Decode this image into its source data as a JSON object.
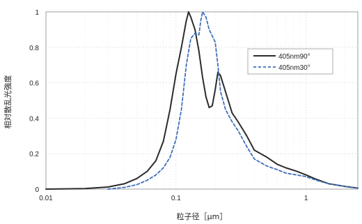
{
  "chart_data": {
    "type": "line",
    "title": "",
    "xlabel": "粒子径［μm］",
    "ylabel": "相対散乱光強度",
    "x_scale": "log",
    "xlim": [
      0.01,
      2.5
    ],
    "ylim": [
      0,
      1
    ],
    "x_ticks": [
      0.01,
      0.1,
      1
    ],
    "x_tick_labels": [
      "0.01",
      "0.1",
      "1"
    ],
    "y_ticks": [
      0,
      0.2,
      0.4,
      0.6,
      0.8,
      1
    ],
    "y_tick_labels": [
      "0",
      "0.2",
      "0.4",
      "0.6",
      "0.8",
      "1"
    ],
    "grid": true,
    "legend_position": "right",
    "series": [
      {
        "name": "405nm90°",
        "color": "#2b2b2b",
        "dash": "solid",
        "points": [
          [
            0.01,
            0
          ],
          [
            0.02,
            0.003
          ],
          [
            0.03,
            0.012
          ],
          [
            0.04,
            0.03
          ],
          [
            0.05,
            0.06
          ],
          [
            0.06,
            0.1
          ],
          [
            0.07,
            0.16
          ],
          [
            0.08,
            0.27
          ],
          [
            0.09,
            0.45
          ],
          [
            0.1,
            0.65
          ],
          [
            0.11,
            0.8
          ],
          [
            0.12,
            0.95
          ],
          [
            0.125,
            1.0
          ],
          [
            0.13,
            0.97
          ],
          [
            0.14,
            0.9
          ],
          [
            0.15,
            0.78
          ],
          [
            0.16,
            0.63
          ],
          [
            0.17,
            0.52
          ],
          [
            0.18,
            0.46
          ],
          [
            0.19,
            0.47
          ],
          [
            0.2,
            0.56
          ],
          [
            0.21,
            0.66
          ],
          [
            0.22,
            0.64
          ],
          [
            0.24,
            0.55
          ],
          [
            0.27,
            0.43
          ],
          [
            0.3,
            0.38
          ],
          [
            0.35,
            0.3
          ],
          [
            0.4,
            0.22
          ],
          [
            0.5,
            0.18
          ],
          [
            0.6,
            0.14
          ],
          [
            0.7,
            0.12
          ],
          [
            0.85,
            0.1
          ],
          [
            1.0,
            0.08
          ],
          [
            1.2,
            0.055
          ],
          [
            1.5,
            0.03
          ],
          [
            2.0,
            0.015
          ],
          [
            2.5,
            0.006
          ]
        ]
      },
      {
        "name": "405nm30°",
        "color": "#3f6fba",
        "dash": "dashed",
        "points": [
          [
            0.03,
            0
          ],
          [
            0.04,
            0.01
          ],
          [
            0.05,
            0.025
          ],
          [
            0.06,
            0.05
          ],
          [
            0.07,
            0.08
          ],
          [
            0.08,
            0.12
          ],
          [
            0.09,
            0.18
          ],
          [
            0.1,
            0.28
          ],
          [
            0.11,
            0.45
          ],
          [
            0.12,
            0.7
          ],
          [
            0.13,
            0.85
          ],
          [
            0.14,
            0.88
          ],
          [
            0.15,
            0.87
          ],
          [
            0.155,
            0.95
          ],
          [
            0.16,
            1.0
          ],
          [
            0.17,
            0.97
          ],
          [
            0.18,
            0.9
          ],
          [
            0.2,
            0.83
          ],
          [
            0.21,
            0.7
          ],
          [
            0.22,
            0.55
          ],
          [
            0.24,
            0.45
          ],
          [
            0.27,
            0.38
          ],
          [
            0.3,
            0.33
          ],
          [
            0.35,
            0.24
          ],
          [
            0.4,
            0.17
          ],
          [
            0.5,
            0.13
          ],
          [
            0.6,
            0.11
          ],
          [
            0.7,
            0.09
          ],
          [
            0.85,
            0.08
          ],
          [
            1.0,
            0.07
          ],
          [
            1.2,
            0.05
          ],
          [
            1.5,
            0.03
          ],
          [
            2.0,
            0.015
          ],
          [
            2.5,
            0.006
          ]
        ]
      }
    ]
  }
}
